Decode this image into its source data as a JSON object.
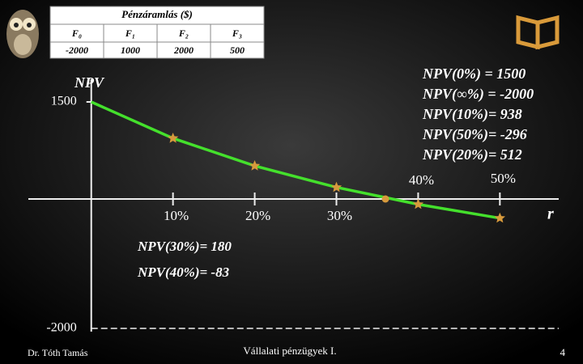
{
  "chart_data": {
    "type": "line",
    "x": [
      0,
      10,
      20,
      30,
      40,
      50
    ],
    "series": [
      {
        "name": "NPV",
        "color": "#44e02c",
        "values": [
          1500,
          938,
          512,
          180,
          -83,
          -296
        ]
      }
    ],
    "crossing": {
      "x": 36,
      "y": 0
    },
    "marker_color": "#d79a3c",
    "xlim": [
      -7.7,
      57.2
    ],
    "ylim": [
      -2100,
      1850
    ],
    "xticks": [
      {
        "value": 10,
        "label": "10%"
      },
      {
        "value": 20,
        "label": "20%"
      },
      {
        "value": 30,
        "label": "30%"
      },
      {
        "value": 40,
        "label": "40%"
      },
      {
        "value": 50,
        "label": "50%"
      }
    ],
    "yticks": [
      -2000,
      1500
    ],
    "y_label": "NPV",
    "x_label": "r",
    "annotations": [
      "NPV(0%) = 1500",
      "NPV(∞%) = -2000",
      "NPV(10%)= 938",
      "NPV(50%)= -296",
      "NPV(20%)= 512"
    ],
    "notes": [
      "NPV(30%)= 180",
      "NPV(40%)= -83"
    ]
  },
  "table": {
    "title": "Pénzáramlás ($)",
    "columns": [
      "F₀",
      "F₁",
      "F₂",
      "F₃"
    ],
    "values": [
      -2000,
      1000,
      2000,
      500
    ]
  },
  "footer": {
    "author": "Dr. Tóth Tamás",
    "course": "Vállalati pénzügyek I.",
    "page": 4
  }
}
